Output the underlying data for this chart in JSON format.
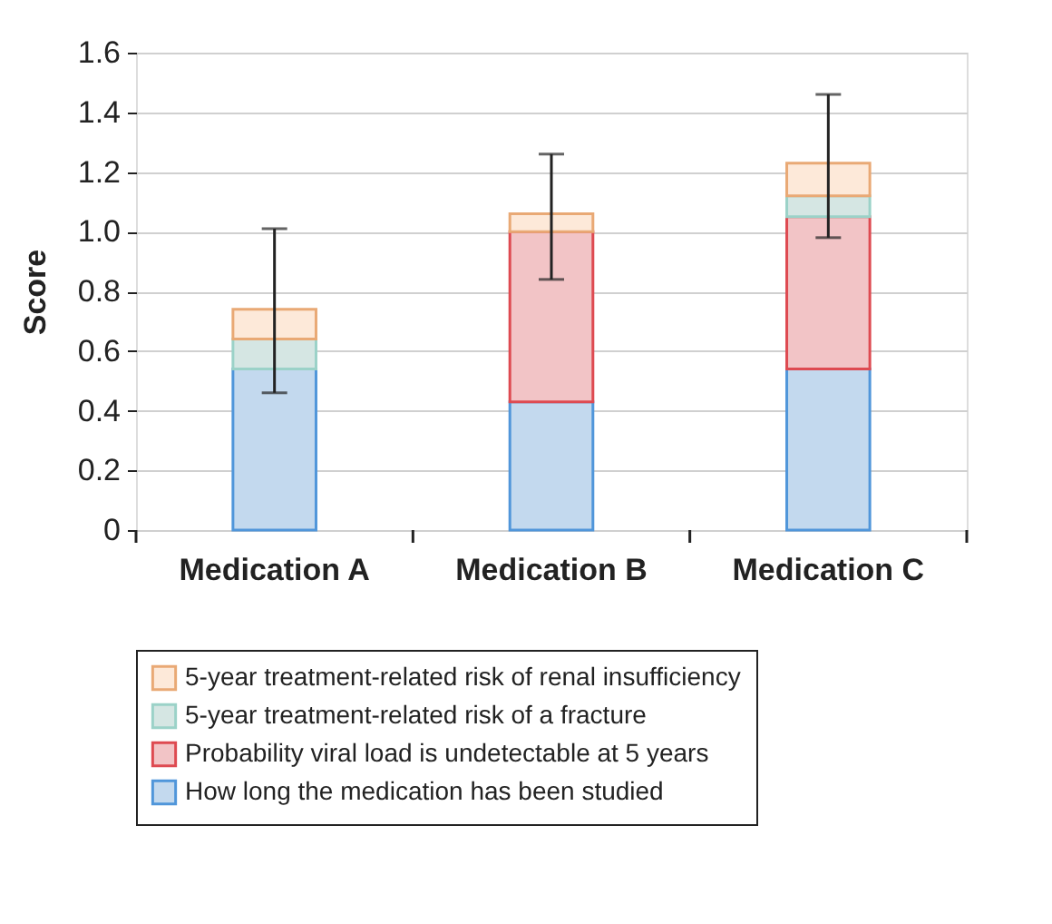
{
  "chart_data": {
    "type": "bar",
    "stacked": true,
    "ylabel": "Score",
    "categories": [
      "Medication A",
      "Medication B",
      "Medication C"
    ],
    "series": [
      {
        "name": "How long the medication has been studied",
        "color": "#c3d9ee",
        "values": [
          0.54,
          0.43,
          0.54
        ]
      },
      {
        "name": "Probability viral load is undetectable at 5 years",
        "color": "#f2c4c6",
        "values": [
          0,
          0.57,
          0.51
        ]
      },
      {
        "name": "5-year treatment-related risk of a fracture",
        "color": "#d5e6e3",
        "values": [
          0.1,
          0,
          0.07
        ]
      },
      {
        "name": "5-year treatment-related risk of renal insufficiency",
        "color": "#fde9d9",
        "values": [
          0.1,
          0.06,
          0.11
        ],
        "errors": [
          [
            0.46,
            1.01
          ],
          [
            0.84,
            1.26
          ],
          [
            0.98,
            1.46
          ]
        ]
      }
    ],
    "ylim": [
      0,
      1.6
    ],
    "yticks": [
      0,
      {
        "value": 0.2,
        "label": "0.2"
      },
      {
        "value": 0.4,
        "label": "0.4"
      },
      {
        "value": 0.6,
        "label": "0.6"
      },
      {
        "value": 0.8,
        "label": "0.8"
      },
      {
        "value": 1.0,
        "label": "1.0"
      },
      {
        "value": 1.2,
        "label": "1.2"
      },
      {
        "value": 1.4,
        "label": "1.4"
      },
      {
        "value": 1.6,
        "label": "1.6"
      }
    ],
    "grid": "y",
    "legend": "bottom"
  }
}
